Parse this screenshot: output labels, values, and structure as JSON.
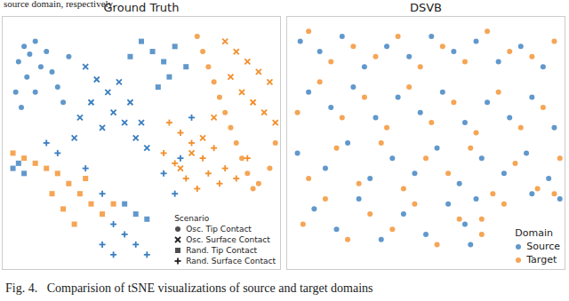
{
  "header_text": "source domain, respectively.",
  "caption": "Fig. 4.   Comparision of tSNE visualizations of source and target domains",
  "chart_data": [
    {
      "type": "scatter",
      "title": "Ground Truth",
      "xlim": [
        0,
        100
      ],
      "ylim": [
        0,
        100
      ],
      "tick_labels": false,
      "legend": "lower right",
      "legend_title": "Scenario",
      "series": [
        {
          "name": "Osc. Tip Contact",
          "domain": "Source",
          "color": "#3a7ebf",
          "marker": "circle",
          "x": [
            8,
            10,
            12,
            6,
            14,
            9,
            16,
            18,
            5,
            12,
            20,
            7,
            24,
            22
          ],
          "y": [
            88,
            85,
            90,
            82,
            80,
            76,
            86,
            78,
            70,
            70,
            72,
            64,
            84,
            66
          ]
        },
        {
          "name": "Osc. Surface Contact",
          "domain": "Source",
          "color": "#3a7ebf",
          "marker": "x",
          "x": [
            30,
            34,
            38,
            32,
            40,
            44,
            36,
            28,
            46,
            42,
            48,
            50,
            26,
            52
          ],
          "y": [
            80,
            75,
            70,
            66,
            62,
            58,
            56,
            60,
            66,
            74,
            52,
            58,
            52,
            48
          ]
        },
        {
          "name": "Rand. Tip Contact",
          "domain": "Source",
          "color": "#3a7ebf",
          "marker": "square",
          "x": [
            50,
            54,
            58,
            46,
            60,
            56,
            62,
            66,
            4,
            6,
            8,
            48,
            52,
            44
          ],
          "y": [
            90,
            86,
            82,
            84,
            76,
            72,
            88,
            80,
            40,
            42,
            38,
            22,
            20,
            26
          ]
        },
        {
          "name": "Rand. Surface Contact",
          "domain": "Source",
          "color": "#3a7ebf",
          "marker": "plus",
          "x": [
            44,
            48,
            52,
            40,
            36,
            40,
            36,
            30,
            62,
            58,
            64,
            20,
            16,
            68
          ],
          "y": [
            14,
            10,
            6,
            6,
            10,
            18,
            30,
            40,
            30,
            38,
            44,
            46,
            50,
            60
          ]
        },
        {
          "name": "Osc. Tip Contact",
          "domain": "Target",
          "color": "#f28e2b",
          "marker": "circle",
          "x": [
            72,
            74,
            76,
            78,
            80,
            82,
            84,
            86,
            88,
            90,
            70,
            92,
            96,
            98
          ],
          "y": [
            86,
            80,
            74,
            68,
            62,
            56,
            50,
            44,
            38,
            32,
            92,
            34,
            40,
            50
          ]
        },
        {
          "name": "Osc. Surface Contact",
          "domain": "Target",
          "color": "#f28e2b",
          "marker": "x",
          "x": [
            80,
            84,
            88,
            92,
            96,
            86,
            90,
            94,
            98,
            82,
            76,
            72,
            68,
            64
          ],
          "y": [
            90,
            86,
            82,
            78,
            74,
            70,
            66,
            62,
            58,
            76,
            60,
            52,
            46,
            40
          ]
        },
        {
          "name": "Rand. Tip Contact",
          "domain": "Target",
          "color": "#f28e2b",
          "marker": "square",
          "x": [
            4,
            8,
            12,
            16,
            20,
            24,
            28,
            32,
            36,
            40,
            30,
            26,
            22,
            18
          ],
          "y": [
            46,
            44,
            42,
            40,
            38,
            34,
            30,
            26,
            22,
            26,
            36,
            18,
            24,
            30
          ]
        },
        {
          "name": "Rand. Surface Contact",
          "domain": "Target",
          "color": "#f28e2b",
          "marker": "plus",
          "x": [
            60,
            64,
            68,
            72,
            74,
            70,
            66,
            62,
            58,
            78,
            80,
            84,
            76,
            88
          ],
          "y": [
            58,
            54,
            50,
            44,
            38,
            32,
            36,
            42,
            46,
            34,
            40,
            36,
            48,
            44
          ]
        }
      ]
    },
    {
      "type": "scatter",
      "title": "DSVB",
      "xlim": [
        0,
        100
      ],
      "ylim": [
        0,
        100
      ],
      "tick_labels": false,
      "legend": "lower right",
      "legend_title": "Domain",
      "series": [
        {
          "name": "Source",
          "color": "#3a7ebf",
          "marker": "circle",
          "x": [
            5,
            12,
            20,
            28,
            36,
            44,
            52,
            60,
            68,
            76,
            84,
            92,
            8,
            16,
            24,
            32,
            40,
            48,
            56,
            64,
            72,
            80,
            88,
            96,
            4,
            14,
            22,
            30,
            38,
            46,
            54,
            62,
            70,
            78,
            86,
            94,
            10,
            18,
            26,
            34,
            42,
            50,
            58,
            66,
            68,
            64,
            88,
            98
          ],
          "y": [
            90,
            86,
            92,
            80,
            88,
            84,
            92,
            86,
            90,
            82,
            88,
            80,
            70,
            64,
            72,
            60,
            68,
            62,
            70,
            58,
            66,
            60,
            68,
            56,
            46,
            40,
            50,
            36,
            44,
            38,
            48,
            34,
            44,
            38,
            46,
            36,
            24,
            16,
            28,
            12,
            22,
            14,
            26,
            10,
            28,
            18,
            30,
            28
          ]
        },
        {
          "name": "Target",
          "color": "#f28e2b",
          "marker": "circle",
          "x": [
            8,
            16,
            24,
            32,
            40,
            48,
            56,
            64,
            72,
            80,
            88,
            96,
            4,
            12,
            20,
            28,
            36,
            44,
            52,
            60,
            68,
            76,
            84,
            92,
            8,
            18,
            26,
            34,
            42,
            50,
            58,
            66,
            74,
            82,
            90,
            98,
            6,
            14,
            22,
            30,
            38,
            46,
            54,
            62,
            70,
            78,
            70,
            96
          ],
          "y": [
            94,
            82,
            88,
            84,
            92,
            80,
            88,
            82,
            94,
            86,
            84,
            90,
            62,
            74,
            60,
            68,
            56,
            72,
            58,
            66,
            54,
            70,
            56,
            64,
            36,
            48,
            34,
            50,
            32,
            44,
            38,
            48,
            30,
            42,
            32,
            44,
            18,
            28,
            12,
            22,
            16,
            26,
            10,
            20,
            14,
            26,
            20,
            30
          ]
        }
      ]
    }
  ]
}
